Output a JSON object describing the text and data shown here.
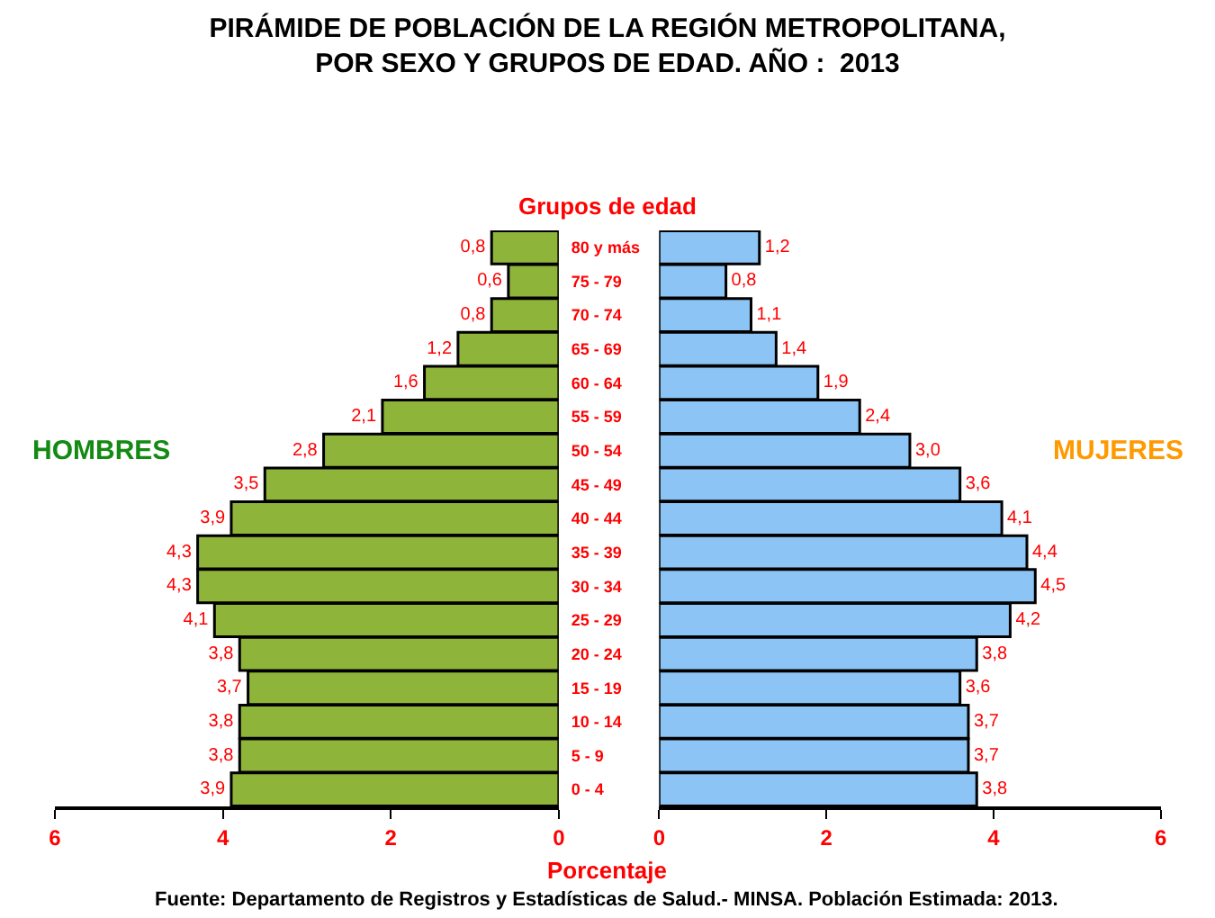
{
  "chart_data": [
    {
      "type": "bar",
      "orientation": "horizontal",
      "title": "PIRÁMIDE DE POBLACIÓN DE LA REGIÓN METROPOLITANA,\nPOR SEXO Y GRUPOS DE EDAD. AÑO :  2013",
      "xlabel": "Porcentaje",
      "annotations": [
        "Fuente: Departamento de Registros y Estadísticas de Salud.- MINSA. Población Estimada: 2013."
      ],
      "categories": [
        "80 y más",
        "75 - 79",
        "70 - 74",
        "65 - 69",
        "60 - 64",
        "55 - 59",
        "50 - 54",
        "45 - 49",
        "40 - 44",
        "35 - 39",
        "30 - 34",
        "25 - 29",
        "20 - 24",
        "15 - 19",
        "10 - 14",
        "5 - 9",
        "0 - 4"
      ],
      "series": [
        {
          "name": "HOMBRES",
          "color": "#8fb43a",
          "values": [
            0.8,
            0.6,
            0.8,
            1.2,
            1.6,
            2.1,
            2.8,
            3.5,
            3.9,
            4.3,
            4.3,
            4.1,
            3.8,
            3.7,
            3.8,
            3.8,
            3.9
          ],
          "value_labels": [
            "0,8",
            "0,6",
            "0,8",
            "1,2",
            "1,6",
            "2,1",
            "2,8",
            "3,5",
            "3,9",
            "4,3",
            "4,3",
            "4,1",
            "3,8",
            "3,7",
            "3,8",
            "3,8",
            "3,9"
          ]
        }
      ],
      "xlim": [
        6,
        0
      ],
      "xticks": [
        6,
        4,
        2,
        0
      ]
    },
    {
      "type": "bar",
      "orientation": "horizontal",
      "ylabel": "Grupos de edad",
      "categories": [
        "80 y más",
        "75 - 79",
        "70 - 74",
        "65 - 69",
        "60 - 64",
        "55 - 59",
        "50 - 54",
        "45 - 49",
        "40 - 44",
        "35 - 39",
        "30 - 34",
        "25 - 29",
        "20 - 24",
        "15 - 19",
        "10 - 14",
        "5 - 9",
        "0 - 4"
      ],
      "series": [
        {
          "name": "MUJERES",
          "color": "#8cc4f5",
          "values": [
            1.2,
            0.8,
            1.1,
            1.4,
            1.9,
            2.4,
            3.0,
            3.6,
            4.1,
            4.4,
            4.5,
            4.2,
            3.8,
            3.6,
            3.7,
            3.7,
            3.8
          ],
          "value_labels": [
            "1,2",
            "0,8",
            "1,1",
            "1,4",
            "1,9",
            "2,4",
            "3,0",
            "3,6",
            "4,1",
            "4,4",
            "4,5",
            "4,2",
            "3,8",
            "3,6",
            "3,7",
            "3,7",
            "3,8"
          ]
        }
      ],
      "xlim": [
        0,
        6
      ],
      "xticks": [
        0,
        2,
        4,
        6
      ],
      "tick_labels": "x"
    }
  ]
}
